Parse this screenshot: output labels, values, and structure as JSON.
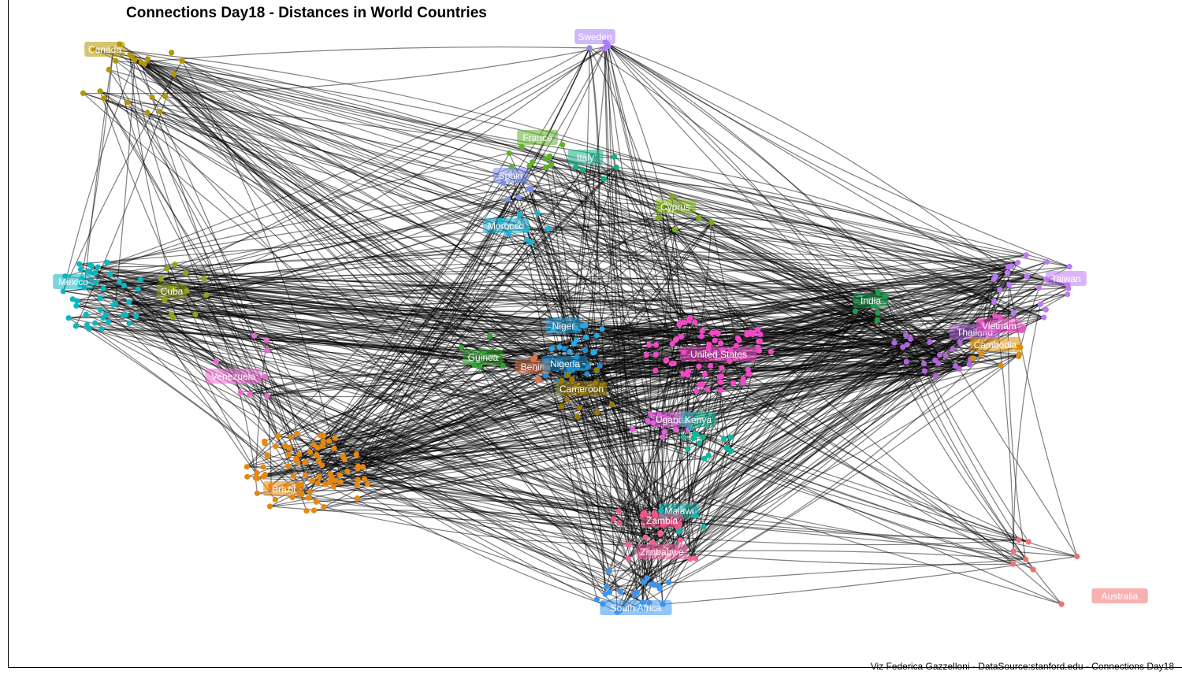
{
  "title": "Connections Day18 - Distances in World Countries",
  "caption": "Viz Federica Gazzelloni - DataSource:stanford.edu - Connections Day18",
  "countries": [
    {
      "key": "canada",
      "label": "Canada",
      "color": "#b39600"
    },
    {
      "key": "sweden",
      "label": "Sweden",
      "color": "#a77ef5"
    },
    {
      "key": "france",
      "label": "France",
      "color": "#5fb12a"
    },
    {
      "key": "italy",
      "label": "Italy",
      "color": "#14ae8a"
    },
    {
      "key": "spain",
      "label": "Spain",
      "color": "#7c8ff0"
    },
    {
      "key": "cyprus",
      "label": "Cyprus",
      "color": "#7aae12"
    },
    {
      "key": "morocco",
      "label": "Morocco",
      "color": "#19b5d8"
    },
    {
      "key": "mexico",
      "label": "Mexico",
      "color": "#0bb7c0"
    },
    {
      "key": "cuba",
      "label": "Cuba",
      "color": "#92a31a"
    },
    {
      "key": "venezuela",
      "label": "Venezuela",
      "color": "#f066d2"
    },
    {
      "key": "brazil",
      "label": "Brazil",
      "color": "#e8870c"
    },
    {
      "key": "guinea",
      "label": "Guinea",
      "color": "#2ea62e"
    },
    {
      "key": "niger",
      "label": "Niger",
      "color": "#27a9e8"
    },
    {
      "key": "benin",
      "label": "Benin",
      "color": "#e1734a"
    },
    {
      "key": "nigeria",
      "label": "Nigeria",
      "color": "#1d8fd0"
    },
    {
      "key": "cameroon",
      "label": "Cameroon",
      "color": "#9a7a00"
    },
    {
      "key": "united_states",
      "label": "United States",
      "color": "#f347c8"
    },
    {
      "key": "uganda",
      "label": "Uganda",
      "color": "#e35ee0"
    },
    {
      "key": "kenya",
      "label": "Kenya",
      "color": "#0bb89a"
    },
    {
      "key": "malawi",
      "label": "Malawi",
      "color": "#16b5ad"
    },
    {
      "key": "zambia",
      "label": "Zambia",
      "color": "#f0558a"
    },
    {
      "key": "zimbabwe",
      "label": "Zimbabwe",
      "color": "#f0609a"
    },
    {
      "key": "south_africa",
      "label": "South Africa",
      "color": "#3a95f0"
    },
    {
      "key": "india",
      "label": "India",
      "color": "#16a04c"
    },
    {
      "key": "thailand",
      "label": "Thailand",
      "color": "#b165dc"
    },
    {
      "key": "vietnam",
      "label": "Vietnam",
      "color": "#e954c4"
    },
    {
      "key": "cambodia",
      "label": "Cambodia",
      "color": "#d8900c"
    },
    {
      "key": "taiwan",
      "label": "Taiwan",
      "color": "#bd79f7"
    },
    {
      "key": "australia",
      "label": "Australia",
      "color": "#f47070"
    }
  ],
  "edge_color": "#000000"
}
